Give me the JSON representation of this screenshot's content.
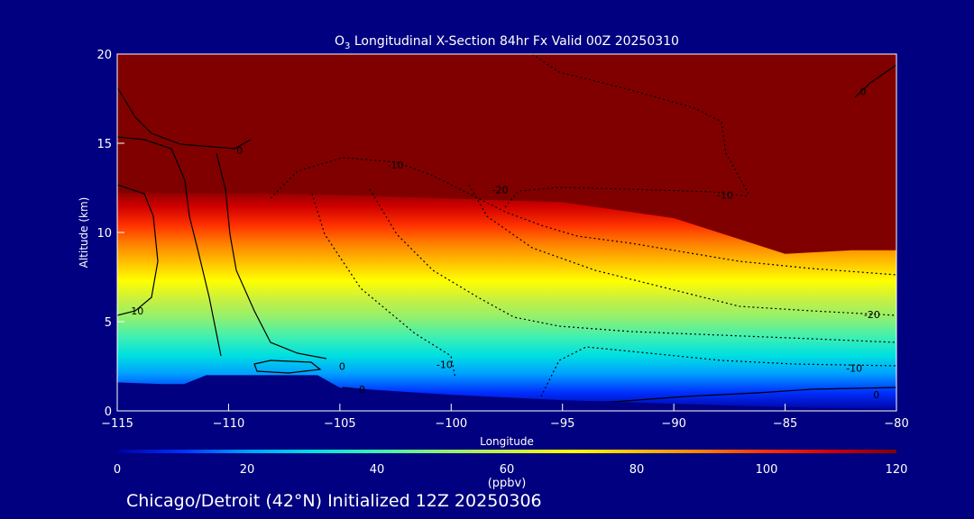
{
  "chart_data": {
    "type": "heatmap",
    "title_prefix": "O",
    "title_sub": "3",
    "title_rest": " Longitudinal X-Section 84hr  Fx Valid 00Z 20250310",
    "xlabel": "Longitude",
    "ylabel": "Altitude (km)",
    "xlim": [
      -115,
      -80
    ],
    "ylim": [
      0,
      20
    ],
    "xticks": [
      -115,
      -110,
      -105,
      -100,
      -95,
      -90,
      -85,
      -80
    ],
    "xtick_labels": [
      "−115",
      "−110",
      "−105",
      "−100",
      "−95",
      "−90",
      "−85",
      "−80"
    ],
    "yticks": [
      0,
      5,
      10,
      15,
      20
    ],
    "ytick_labels": [
      "0",
      "5",
      "10",
      "15",
      "20"
    ],
    "colorbar": {
      "label": "(ppbv)",
      "range": [
        0,
        120
      ],
      "ticks": [
        0,
        20,
        40,
        60,
        80,
        100,
        120
      ],
      "tick_labels": [
        "0",
        "20",
        "40",
        "60",
        "80",
        "100",
        "120"
      ],
      "colors": [
        "#0000a0",
        "#0030ff",
        "#00a0ff",
        "#00e0e0",
        "#40f0b0",
        "#90f070",
        "#c8f040",
        "#ffff00",
        "#ffc000",
        "#ff8000",
        "#ff3000",
        "#d00000",
        "#800000"
      ]
    },
    "terrain_profile": [
      [
        -115,
        1.6
      ],
      [
        -113,
        1.5
      ],
      [
        -112,
        1.5
      ],
      [
        -111,
        2.0
      ],
      [
        -106,
        2.0
      ],
      [
        -105,
        1.3
      ],
      [
        -100,
        0.9
      ],
      [
        -95,
        0.6
      ],
      [
        -90,
        0.4
      ],
      [
        -85,
        0.2
      ],
      [
        -80,
        0.1
      ]
    ],
    "tropopause_profile": [
      [
        -115,
        12.2
      ],
      [
        -108,
        12.2
      ],
      [
        -105,
        12.1
      ],
      [
        -100,
        11.9
      ],
      [
        -95,
        11.7
      ],
      [
        -90,
        10.8
      ],
      [
        -87,
        9.6
      ],
      [
        -85,
        8.8
      ],
      [
        -82,
        9.0
      ],
      [
        -80,
        9.0
      ]
    ],
    "contour_labels": [
      {
        "text": "0",
        "x": -109.5,
        "y": 14.6
      },
      {
        "text": "10",
        "x": -114.1,
        "y": 5.6
      },
      {
        "text": "-10",
        "x": -102.5,
        "y": 13.8
      },
      {
        "text": "-20",
        "x": -97.8,
        "y": 12.4
      },
      {
        "text": "-10",
        "x": -87.7,
        "y": 12.1
      },
      {
        "text": "-10",
        "x": -100.3,
        "y": 2.6
      },
      {
        "text": "0",
        "x": -104.9,
        "y": 2.5
      },
      {
        "text": "0",
        "x": -104.0,
        "y": 1.2
      },
      {
        "text": "-20",
        "x": -81.1,
        "y": 5.4
      },
      {
        "text": "-10",
        "x": -81.9,
        "y": 2.4
      },
      {
        "text": "0",
        "x": -80.9,
        "y": 0.9
      },
      {
        "text": "0",
        "x": -81.5,
        "y": 17.9
      }
    ]
  },
  "footer": {
    "caption": "Chicago/Detroit (42°N) Initialized 12Z 20250306"
  }
}
